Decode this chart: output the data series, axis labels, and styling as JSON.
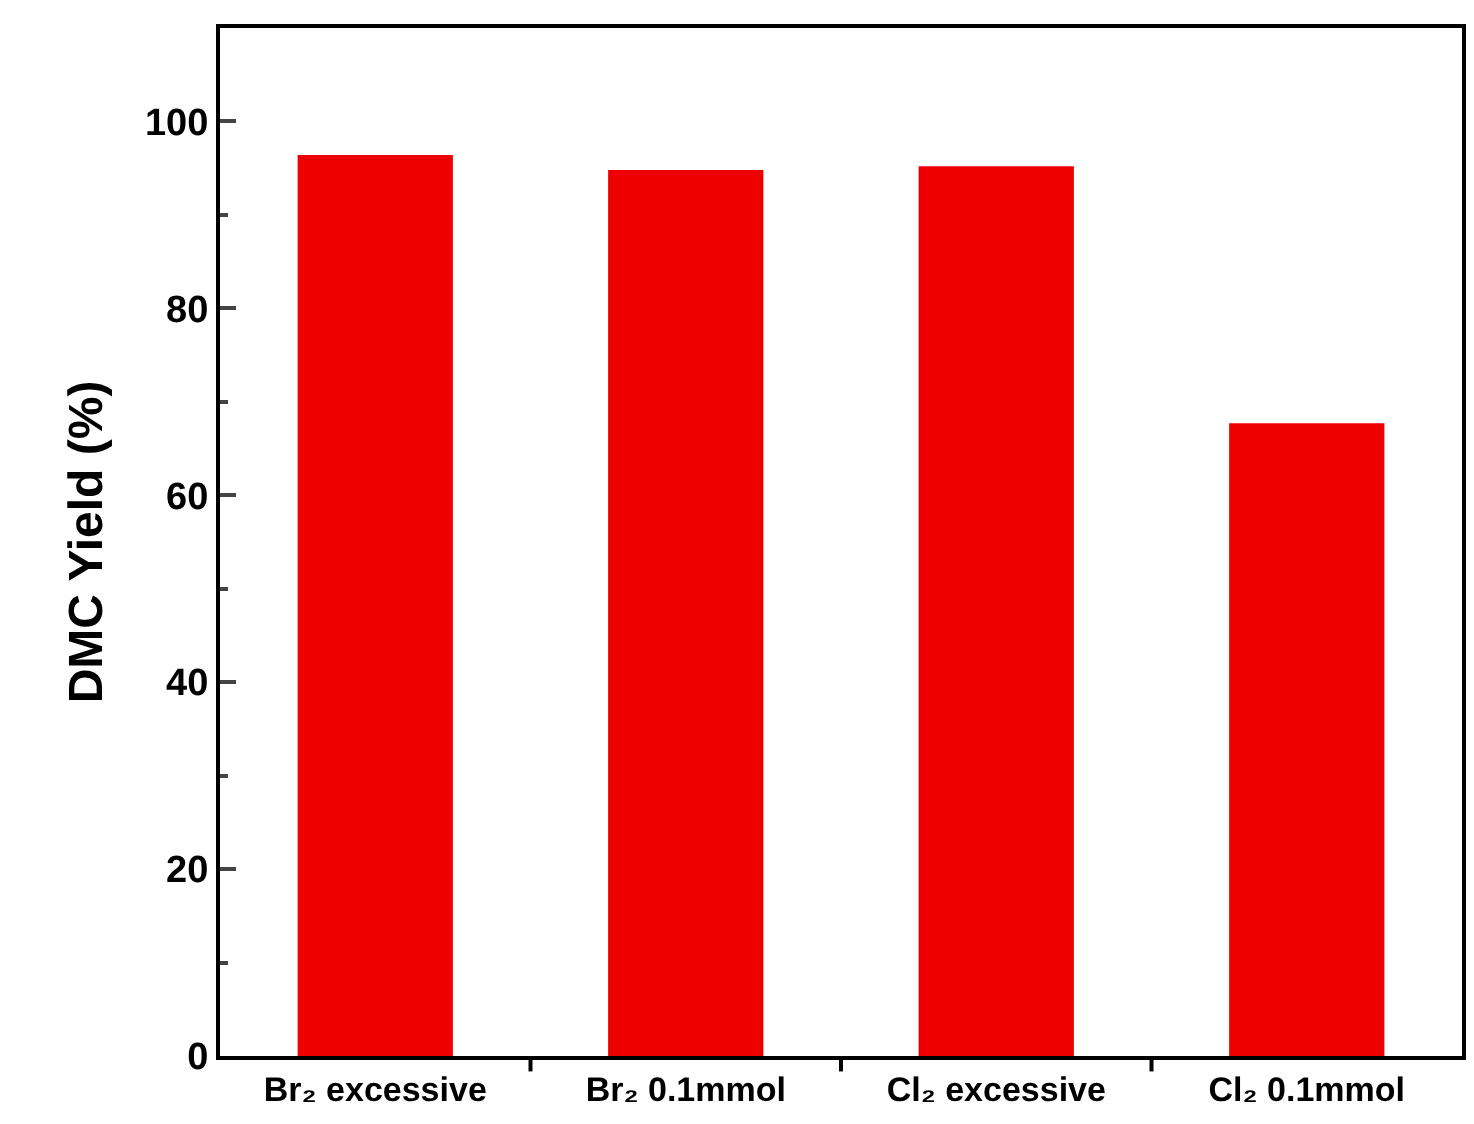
{
  "chart_data": {
    "type": "bar",
    "ylabel": "DMC Yield (%)",
    "categories": [
      "Br₂ excessive",
      "Br₂ 0.1mmol",
      "Cl₂ excessive",
      "Cl₂ 0.1mmol"
    ],
    "values": [
      96.4,
      94.8,
      95.2,
      67.7
    ],
    "color": "#ee0000",
    "ylim": [
      0,
      110
    ],
    "yticks": [
      0,
      20,
      40,
      60,
      80,
      100
    ]
  }
}
